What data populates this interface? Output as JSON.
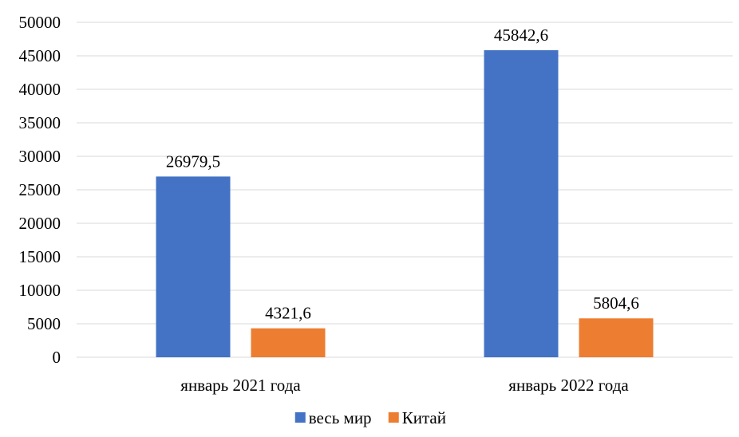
{
  "chart_data": {
    "type": "bar",
    "title": "",
    "xlabel": "",
    "ylabel": "",
    "categories": [
      "январь 2021 года",
      "январь 2022 года"
    ],
    "series": [
      {
        "name": "весь мир",
        "color": "#4472C4",
        "values": [
          26979.5,
          45842.6
        ],
        "labels": [
          "26979,5",
          "45842,6"
        ]
      },
      {
        "name": "Китай",
        "color": "#ED7D31",
        "values": [
          4321.6,
          5804.6
        ],
        "labels": [
          "4321,6",
          "5804,6"
        ]
      }
    ],
    "ylim": [
      0,
      50000
    ],
    "yticks": [
      0,
      5000,
      10000,
      15000,
      20000,
      25000,
      30000,
      35000,
      40000,
      45000,
      50000
    ],
    "ytick_labels": [
      "0",
      "5000",
      "10000",
      "15000",
      "20000",
      "25000",
      "30000",
      "35000",
      "40000",
      "45000",
      "50000"
    ],
    "grid": true,
    "gridline_color": "#D9D9D9",
    "legend_position": "bottom"
  }
}
